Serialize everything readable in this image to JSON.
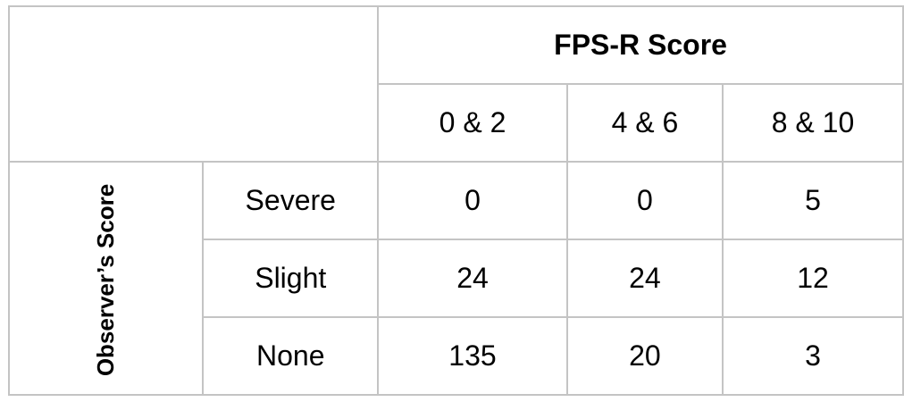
{
  "chart_data": {
    "type": "table",
    "column_group_title": "FPS-R Score",
    "row_group_title": "Observer’s Score",
    "columns": [
      "0 & 2",
      "4 & 6",
      "8 & 10"
    ],
    "rows": [
      {
        "label": "Severe",
        "values": [
          "0",
          "0",
          "5"
        ]
      },
      {
        "label": "Slight",
        "values": [
          "24",
          "24",
          "12"
        ]
      },
      {
        "label": "None",
        "values": [
          "135",
          "20",
          "3"
        ]
      }
    ]
  },
  "colors": {
    "border": "#c4c4c4",
    "text": "#000000",
    "background": "#ffffff"
  }
}
